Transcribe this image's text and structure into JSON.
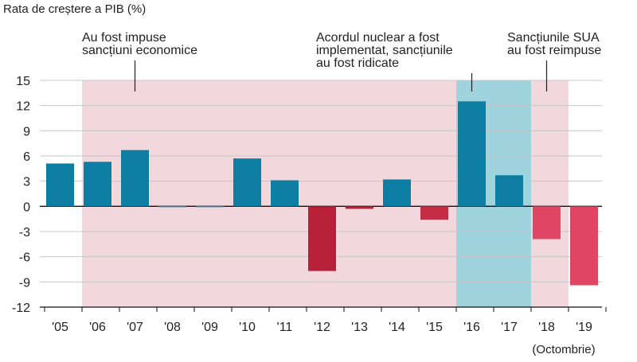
{
  "chart_data": {
    "type": "bar",
    "ylabel": "Rata de creștere a PIB (%)",
    "categories": [
      "'05",
      "'06",
      "'07",
      "'08",
      "'09",
      "'10",
      "'11",
      "'12",
      "'13",
      "'14",
      "'15",
      "'16",
      "'17",
      "'18",
      "'19"
    ],
    "values": [
      5.1,
      5.3,
      6.7,
      -0.1,
      0.0,
      5.7,
      3.1,
      -7.7,
      -0.3,
      3.2,
      -1.6,
      12.5,
      3.7,
      -3.9,
      -9.4
    ],
    "bar_colors": [
      "#0d7ea1",
      "#0d7ea1",
      "#0d7ea1",
      "#0d7ea1",
      "#0d7ea1",
      "#0d7ea1",
      "#0d7ea1",
      "#b8203a",
      "#b8203a",
      "#0d7ea1",
      "#c52d46",
      "#0d7ea1",
      "#0d7ea1",
      "#e04564",
      "#e04564"
    ],
    "ylim": [
      -12,
      15
    ],
    "yticks": [
      15,
      12,
      9,
      6,
      3,
      0,
      -3,
      -6,
      -9,
      -12
    ],
    "grid": true,
    "x_note": "(Octombrie)",
    "shaded_regions": [
      {
        "from": "'06",
        "to": "'18",
        "color": "#f2d7dc"
      },
      {
        "from": "'16",
        "to": "'17",
        "color": "#9fd3de"
      }
    ],
    "annotations": [
      {
        "lines": [
          "Au fost impuse",
          "sancțiuni economice"
        ],
        "marker_at": "'07"
      },
      {
        "lines": [
          "Acordul nuclear a fost",
          "implementat, sancțiunile",
          "au fost ridicate"
        ],
        "marker_at": "'16"
      },
      {
        "lines": [
          "Sancțiunile SUA",
          "au fost reimpuse"
        ],
        "marker_at": "'18"
      }
    ]
  }
}
